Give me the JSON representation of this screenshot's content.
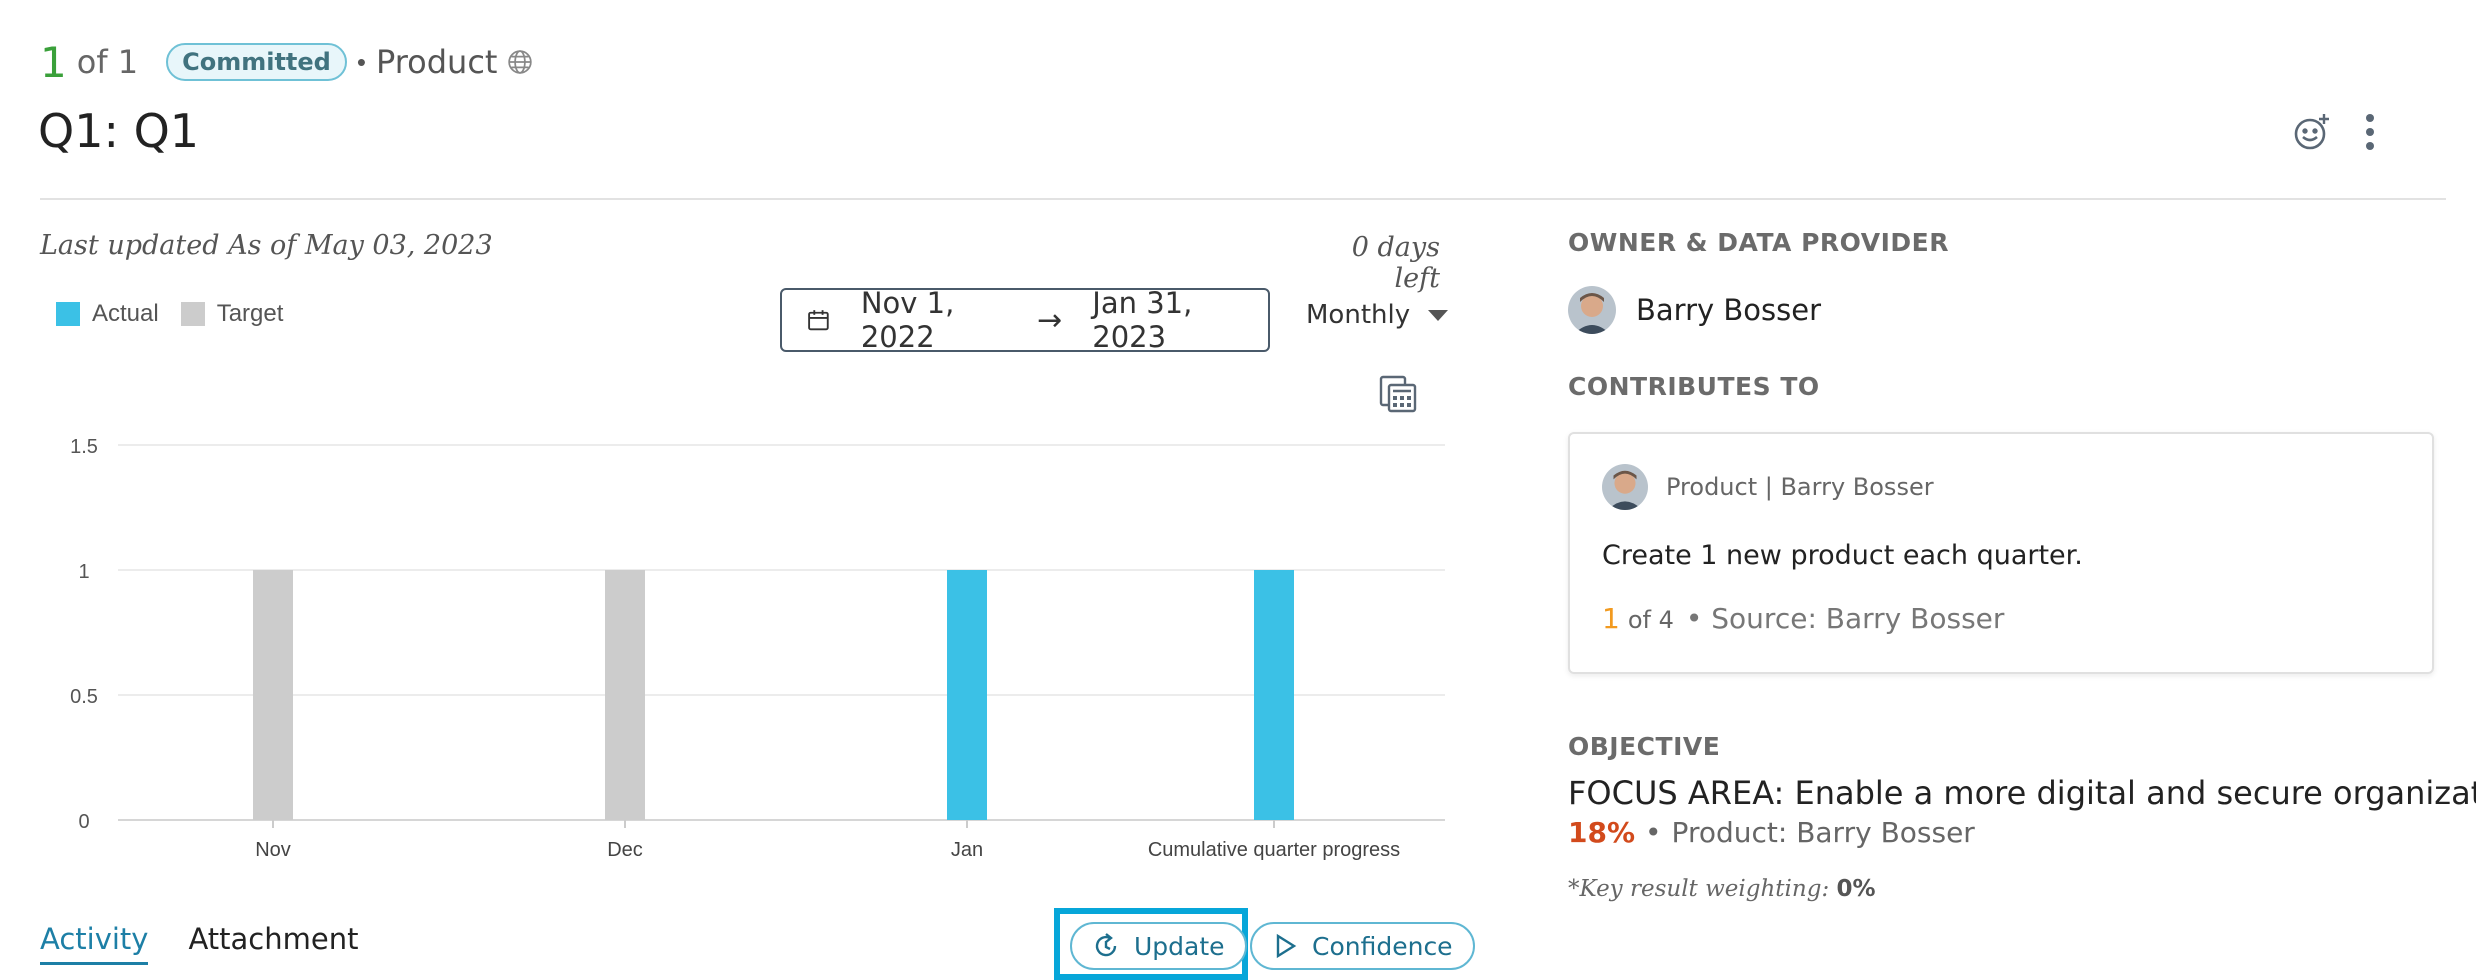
{
  "header": {
    "count_current": "1",
    "count_of": "of 1",
    "status_badge": "Committed",
    "dot": "•",
    "category": "Product",
    "title": "Q1: Q1"
  },
  "progress": {
    "last_updated": "Last updated As of May 03, 2023",
    "days_left": "0 days left",
    "date_start": "Nov 1, 2022",
    "date_end": "Jan 31, 2023",
    "period": "Monthly"
  },
  "legend": {
    "actual": "Actual",
    "target": "Target",
    "actual_color": "#3bc1e6",
    "target_color": "#cccccc"
  },
  "chart_data": {
    "type": "bar",
    "categories": [
      "Nov",
      "Dec",
      "Jan",
      "Cumulative quarter progress"
    ],
    "series": [
      {
        "name": "Actual",
        "values": [
          null,
          null,
          1,
          1
        ],
        "color": "#3bc1e6"
      },
      {
        "name": "Target",
        "values": [
          1,
          1,
          null,
          null
        ],
        "color": "#cccccc"
      }
    ],
    "yticks": [
      "1.5",
      "1",
      "0.5",
      "0"
    ],
    "ylim": [
      0,
      1.5
    ],
    "grid": true
  },
  "tabs": [
    {
      "label": "Activity",
      "active": true
    },
    {
      "label": "Attachment",
      "active": false
    }
  ],
  "actions": {
    "update_label": "Update",
    "confidence_label": "Confidence"
  },
  "owner": {
    "section_label": "OWNER & DATA PROVIDER",
    "name": "Barry Bosser"
  },
  "contributes": {
    "section_label": "CONTRIBUTES TO",
    "card_owner": "Product | Barry Bosser",
    "text": "Create 1 new product each quarter.",
    "progress_num": "1",
    "progress_of": "of 4",
    "source": "• Source: Barry Bosser"
  },
  "objective": {
    "section_label": "OBJECTIVE",
    "title": "FOCUS AREA: Enable a more digital and secure organization",
    "percent": "18%",
    "sep": "•",
    "owner": "Product: Barry Bosser",
    "weighting_label": "*Key result weighting:",
    "weighting_value": "0%"
  }
}
